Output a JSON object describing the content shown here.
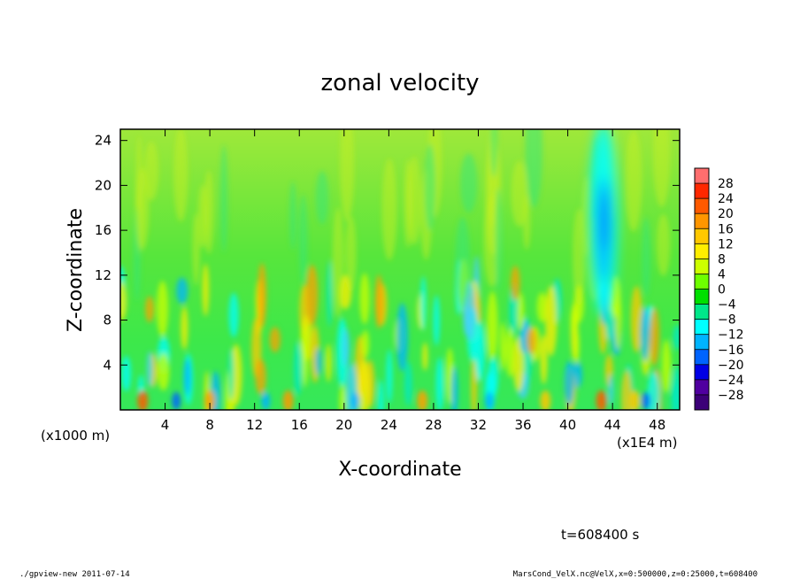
{
  "chart_data": {
    "type": "heatmap",
    "title": "zonal velocity",
    "xlabel": "X-coordinate",
    "ylabel": "Z-coordinate",
    "x_unit_note": "(x1E4 m)",
    "y_unit_note": "(x1000 m)",
    "xlim": [
      0,
      50
    ],
    "ylim": [
      0,
      25
    ],
    "xticks": [
      "4",
      "8",
      "12",
      "16",
      "20",
      "24",
      "28",
      "32",
      "36",
      "40",
      "44",
      "48"
    ],
    "yticks": [
      "4",
      "8",
      "12",
      "16",
      "20",
      "24"
    ],
    "colorbar": {
      "levels": [
        "28",
        "24",
        "20",
        "16",
        "12",
        "8",
        "4",
        "0",
        "−4",
        "−8",
        "−12",
        "−16",
        "−20",
        "−24",
        "−28"
      ],
      "colors": [
        "#ff6e6e",
        "#ff2800",
        "#ff5a00",
        "#ff9600",
        "#ffc800",
        "#ffee00",
        "#cdff00",
        "#6eff00",
        "#00e000",
        "#00e88a",
        "#00ffff",
        "#00b4ff",
        "#0064ff",
        "#0000e6",
        "#5000a0",
        "#3c0078"
      ]
    },
    "field_description": "mostly weak positive (green-yellow) above 12; alternating positive/negative cells below 12; strong negative jet near x=43, z=10-24"
  },
  "annotations": {
    "time": "t=608400 s",
    "footer_left": "./gpview-new   2011-07-14",
    "footer_right": "MarsCond_VelX.nc@VelX,x=0:500000,z=0:25000,t=608400"
  }
}
